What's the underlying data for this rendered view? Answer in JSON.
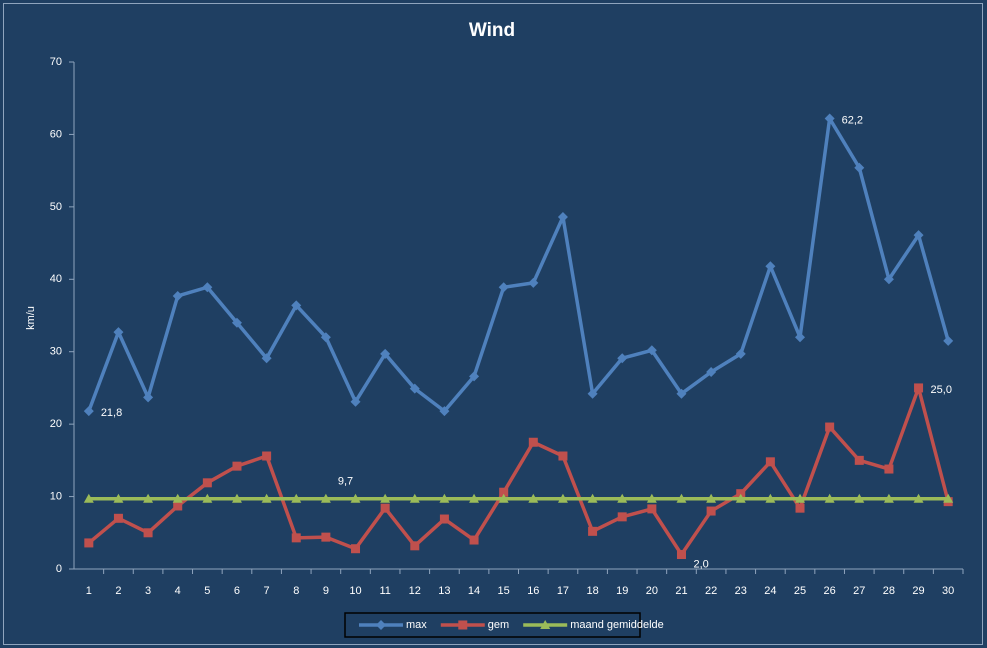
{
  "chart_data": {
    "type": "line",
    "title": "Wind",
    "y_label": "km/u",
    "categories": [
      "1",
      "2",
      "3",
      "4",
      "5",
      "6",
      "7",
      "8",
      "9",
      "10",
      "11",
      "12",
      "13",
      "14",
      "15",
      "16",
      "17",
      "18",
      "19",
      "20",
      "21",
      "22",
      "23",
      "24",
      "25",
      "26",
      "27",
      "28",
      "29",
      "30"
    ],
    "ylim": [
      0,
      70
    ],
    "yticks": [
      0,
      10,
      20,
      30,
      40,
      50,
      60,
      70
    ],
    "legend": "bottom",
    "series": [
      {
        "name": "max",
        "color": "#4f81bd",
        "marker": "diamond",
        "values": [
          21.8,
          32.7,
          23.7,
          37.7,
          38.9,
          34.0,
          29.1,
          36.4,
          32.0,
          23.1,
          29.7,
          24.9,
          21.8,
          26.6,
          38.9,
          39.5,
          48.6,
          24.2,
          29.1,
          30.2,
          24.2,
          27.2,
          29.7,
          41.8,
          32.0,
          62.2,
          55.4,
          40.0,
          46.1,
          31.5
        ],
        "value_labels": [
          "21,8",
          null,
          null,
          null,
          null,
          null,
          null,
          null,
          null,
          null,
          null,
          null,
          null,
          null,
          null,
          null,
          null,
          null,
          null,
          null,
          null,
          null,
          null,
          null,
          null,
          "62,2",
          null,
          null,
          null,
          null
        ]
      },
      {
        "name": "gem",
        "color": "#c0504d",
        "marker": "square",
        "values": [
          3.6,
          7.0,
          5.0,
          8.7,
          11.9,
          14.2,
          15.6,
          4.3,
          4.4,
          2.8,
          8.4,
          3.2,
          6.9,
          4.0,
          10.6,
          17.5,
          15.6,
          5.2,
          7.2,
          8.3,
          2.0,
          8.0,
          10.4,
          14.8,
          8.4,
          19.6,
          15.0,
          13.8,
          25.0,
          9.3
        ],
        "value_labels": [
          null,
          null,
          null,
          null,
          null,
          null,
          null,
          null,
          null,
          null,
          null,
          null,
          null,
          null,
          null,
          null,
          null,
          null,
          null,
          null,
          "2,0",
          null,
          null,
          null,
          null,
          null,
          null,
          null,
          "25,0",
          null
        ]
      },
      {
        "name": "maand gemiddelde",
        "color": "#9bbb59",
        "marker": "triangle",
        "values": [
          9.7,
          9.7,
          9.7,
          9.7,
          9.7,
          9.7,
          9.7,
          9.7,
          9.7,
          9.7,
          9.7,
          9.7,
          9.7,
          9.7,
          9.7,
          9.7,
          9.7,
          9.7,
          9.7,
          9.7,
          9.7,
          9.7,
          9.7,
          9.7,
          9.7,
          9.7,
          9.7,
          9.7,
          9.7,
          9.7
        ],
        "value_labels": [
          null,
          null,
          null,
          null,
          null,
          null,
          null,
          null,
          "9,7",
          null,
          null,
          null,
          null,
          null,
          null,
          null,
          null,
          null,
          null,
          null,
          null,
          null,
          null,
          null,
          null,
          null,
          null,
          null,
          null,
          null
        ]
      }
    ]
  }
}
